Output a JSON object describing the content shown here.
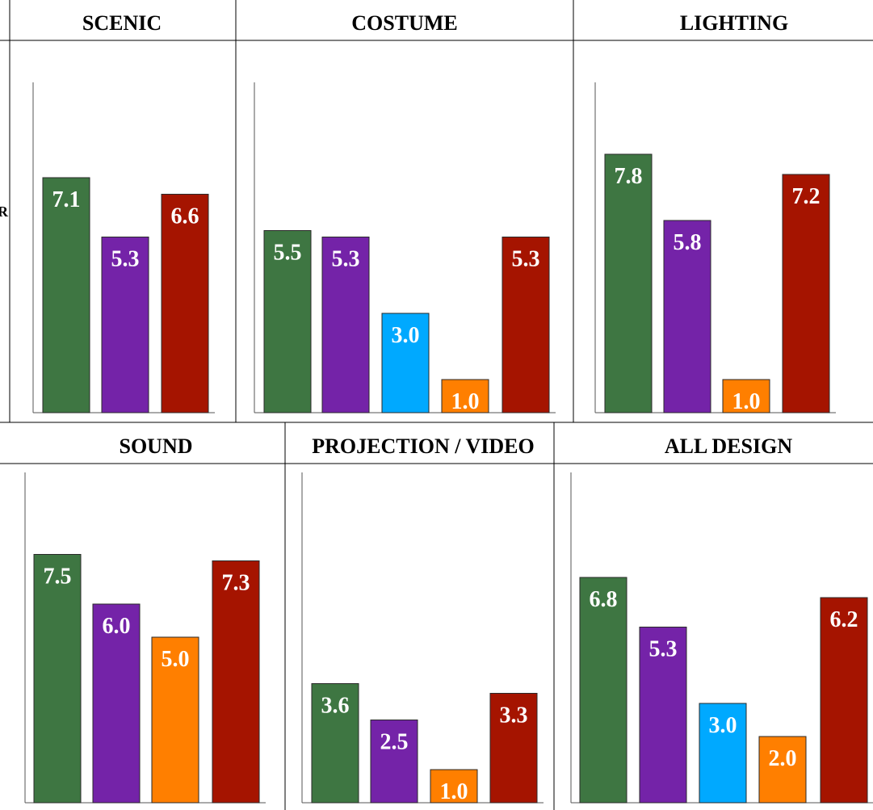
{
  "stray_text": "R",
  "colors": {
    "green": "#3e7642",
    "purple": "#7423a8",
    "blue": "#00a9ff",
    "orange": "#ff7f00",
    "red": "#a51400"
  },
  "chart_data": [
    {
      "type": "bar",
      "title": "SCENIC",
      "ylim": [
        0,
        10
      ],
      "bars": [
        {
          "value": 7.1,
          "label": "7.1",
          "color": "green"
        },
        {
          "value": 5.3,
          "label": "5.3",
          "color": "purple"
        },
        {
          "value": 6.6,
          "label": "6.6",
          "color": "red"
        }
      ]
    },
    {
      "type": "bar",
      "title": "COSTUME",
      "ylim": [
        0,
        10
      ],
      "bars": [
        {
          "value": 5.5,
          "label": "5.5",
          "color": "green"
        },
        {
          "value": 5.3,
          "label": "5.3",
          "color": "purple"
        },
        {
          "value": 3.0,
          "label": "3.0",
          "color": "blue"
        },
        {
          "value": 1.0,
          "label": "1.0",
          "color": "orange"
        },
        {
          "value": 5.3,
          "label": "5.3",
          "color": "red"
        }
      ]
    },
    {
      "type": "bar",
      "title": "LIGHTING",
      "ylim": [
        0,
        10
      ],
      "bars": [
        {
          "value": 7.8,
          "label": "7.8",
          "color": "green"
        },
        {
          "value": 5.8,
          "label": "5.8",
          "color": "purple"
        },
        {
          "value": 1.0,
          "label": "1.0",
          "color": "orange"
        },
        {
          "value": 7.2,
          "label": "7.2",
          "color": "red"
        }
      ]
    },
    {
      "type": "bar",
      "title": "SOUND",
      "ylim": [
        0,
        10
      ],
      "bars": [
        {
          "value": 7.5,
          "label": "7.5",
          "color": "green"
        },
        {
          "value": 6.0,
          "label": "6.0",
          "color": "purple"
        },
        {
          "value": 5.0,
          "label": "5.0",
          "color": "orange"
        },
        {
          "value": 7.3,
          "label": "7.3",
          "color": "red"
        }
      ]
    },
    {
      "type": "bar",
      "title": "PROJECTION / VIDEO",
      "ylim": [
        0,
        10
      ],
      "bars": [
        {
          "value": 3.6,
          "label": "3.6",
          "color": "green"
        },
        {
          "value": 2.5,
          "label": "2.5",
          "color": "purple"
        },
        {
          "value": 1.0,
          "label": "1.0",
          "color": "orange"
        },
        {
          "value": 3.3,
          "label": "3.3",
          "color": "red"
        }
      ]
    },
    {
      "type": "bar",
      "title": "ALL DESIGN",
      "ylim": [
        0,
        10
      ],
      "bars": [
        {
          "value": 6.8,
          "label": "6.8",
          "color": "green"
        },
        {
          "value": 5.3,
          "label": "5.3",
          "color": "purple"
        },
        {
          "value": 3.0,
          "label": "3.0",
          "color": "blue"
        },
        {
          "value": 2.0,
          "label": "2.0",
          "color": "orange"
        },
        {
          "value": 6.2,
          "label": "6.2",
          "color": "red"
        }
      ]
    }
  ]
}
